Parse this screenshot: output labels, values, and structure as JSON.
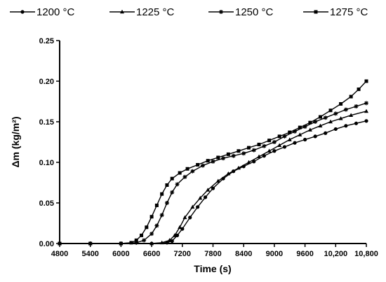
{
  "chart_data": {
    "type": "line",
    "title": "",
    "xlabel": "Time  (s)",
    "ylabel": "Δm (kg/m²)",
    "xlim": [
      4800,
      10800
    ],
    "ylim": [
      0,
      0.25
    ],
    "x_ticks": [
      4800,
      5400,
      6000,
      6600,
      7200,
      7800,
      8400,
      9000,
      9600,
      10200,
      10800
    ],
    "x_tick_labels": [
      "4800",
      "5400",
      "6000",
      "6600",
      "7200",
      "7800",
      "8400",
      "9000",
      "9600",
      "10,200",
      "10,800"
    ],
    "y_ticks": [
      0,
      0.05,
      0.1,
      0.15,
      0.2,
      0.25
    ],
    "y_tick_labels": [
      "0.00",
      "0.05",
      "0.10",
      "0.15",
      "0.20",
      "0.25"
    ],
    "grid": false,
    "legend_position": "top",
    "series": [
      {
        "name": "1200 °C",
        "marker": "circle",
        "points": [
          [
            4800,
            0
          ],
          [
            5400,
            0
          ],
          [
            6000,
            0
          ],
          [
            6600,
            0
          ],
          [
            6900,
            0.001
          ],
          [
            7000,
            0.003
          ],
          [
            7100,
            0.01
          ],
          [
            7200,
            0.018
          ],
          [
            7350,
            0.032
          ],
          [
            7500,
            0.045
          ],
          [
            7650,
            0.057
          ],
          [
            7800,
            0.068
          ],
          [
            8000,
            0.08
          ],
          [
            8200,
            0.089
          ],
          [
            8400,
            0.095
          ],
          [
            8600,
            0.101
          ],
          [
            8800,
            0.108
          ],
          [
            9000,
            0.114
          ],
          [
            9200,
            0.119
          ],
          [
            9400,
            0.124
          ],
          [
            9600,
            0.128
          ],
          [
            9800,
            0.132
          ],
          [
            10000,
            0.136
          ],
          [
            10200,
            0.141
          ],
          [
            10400,
            0.145
          ],
          [
            10600,
            0.148
          ],
          [
            10800,
            0.151
          ]
        ]
      },
      {
        "name": "1225 °C",
        "marker": "triangle",
        "points": [
          [
            4800,
            0
          ],
          [
            5400,
            0
          ],
          [
            6000,
            0
          ],
          [
            6600,
            0
          ],
          [
            6800,
            0.001
          ],
          [
            6950,
            0.004
          ],
          [
            7050,
            0.01
          ],
          [
            7150,
            0.02
          ],
          [
            7250,
            0.032
          ],
          [
            7400,
            0.045
          ],
          [
            7550,
            0.056
          ],
          [
            7700,
            0.066
          ],
          [
            7900,
            0.077
          ],
          [
            8100,
            0.086
          ],
          [
            8300,
            0.093
          ],
          [
            8500,
            0.1
          ],
          [
            8700,
            0.107
          ],
          [
            8900,
            0.114
          ],
          [
            9100,
            0.121
          ],
          [
            9300,
            0.128
          ],
          [
            9500,
            0.134
          ],
          [
            9700,
            0.14
          ],
          [
            9900,
            0.145
          ],
          [
            10100,
            0.15
          ],
          [
            10300,
            0.154
          ],
          [
            10500,
            0.158
          ],
          [
            10800,
            0.163
          ]
        ]
      },
      {
        "name": "1250 °C",
        "marker": "star",
        "points": [
          [
            4800,
            0
          ],
          [
            5400,
            0
          ],
          [
            6000,
            0
          ],
          [
            6300,
            0.001
          ],
          [
            6450,
            0.004
          ],
          [
            6600,
            0.012
          ],
          [
            6700,
            0.022
          ],
          [
            6800,
            0.035
          ],
          [
            6900,
            0.05
          ],
          [
            7000,
            0.063
          ],
          [
            7100,
            0.073
          ],
          [
            7250,
            0.082
          ],
          [
            7400,
            0.089
          ],
          [
            7600,
            0.096
          ],
          [
            7800,
            0.101
          ],
          [
            8000,
            0.105
          ],
          [
            8200,
            0.108
          ],
          [
            8400,
            0.111
          ],
          [
            8600,
            0.115
          ],
          [
            8800,
            0.12
          ],
          [
            9000,
            0.125
          ],
          [
            9200,
            0.132
          ],
          [
            9400,
            0.138
          ],
          [
            9600,
            0.144
          ],
          [
            9800,
            0.15
          ],
          [
            10000,
            0.155
          ],
          [
            10200,
            0.16
          ],
          [
            10400,
            0.165
          ],
          [
            10600,
            0.169
          ],
          [
            10800,
            0.173
          ]
        ]
      },
      {
        "name": "1275 °C",
        "marker": "square",
        "points": [
          [
            4800,
            0
          ],
          [
            5400,
            0
          ],
          [
            6000,
            0
          ],
          [
            6200,
            0.001
          ],
          [
            6300,
            0.004
          ],
          [
            6400,
            0.01
          ],
          [
            6500,
            0.02
          ],
          [
            6600,
            0.033
          ],
          [
            6700,
            0.047
          ],
          [
            6800,
            0.061
          ],
          [
            6900,
            0.072
          ],
          [
            7000,
            0.08
          ],
          [
            7150,
            0.087
          ],
          [
            7300,
            0.092
          ],
          [
            7500,
            0.097
          ],
          [
            7700,
            0.102
          ],
          [
            7900,
            0.106
          ],
          [
            8100,
            0.11
          ],
          [
            8300,
            0.114
          ],
          [
            8500,
            0.118
          ],
          [
            8700,
            0.122
          ],
          [
            8900,
            0.127
          ],
          [
            9100,
            0.132
          ],
          [
            9300,
            0.137
          ],
          [
            9500,
            0.143
          ],
          [
            9700,
            0.149
          ],
          [
            9900,
            0.156
          ],
          [
            10100,
            0.164
          ],
          [
            10300,
            0.172
          ],
          [
            10500,
            0.181
          ],
          [
            10650,
            0.19
          ],
          [
            10800,
            0.2
          ]
        ]
      }
    ]
  }
}
